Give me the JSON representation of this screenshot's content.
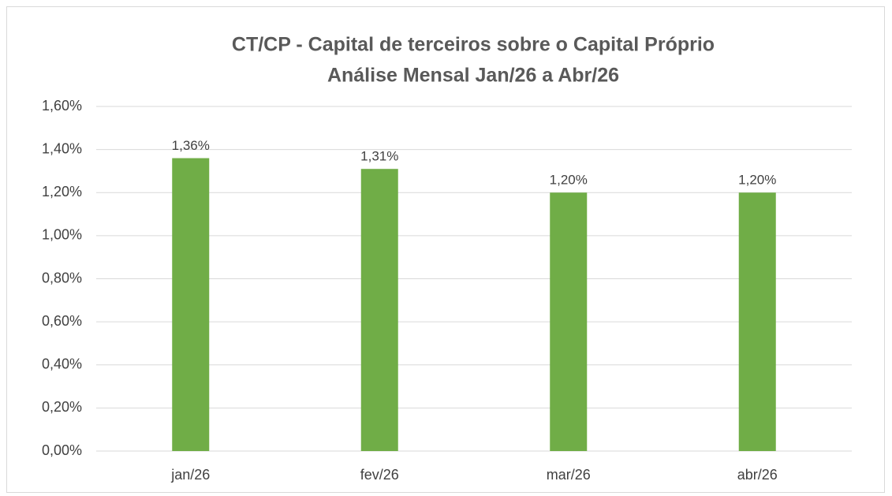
{
  "chart_data": {
    "type": "bar",
    "title": "CT/CP - Capital de terceiros sobre o Capital Próprio",
    "subtitle": "Análise Mensal Jan/26 a Abr/26",
    "categories": [
      "jan/26",
      "fev/26",
      "mar/26",
      "abr/26"
    ],
    "values": [
      1.36,
      1.31,
      1.2,
      1.2
    ],
    "value_labels": [
      "1,36%",
      "1,31%",
      "1,20%",
      "1,20%"
    ],
    "color": "#70ad47",
    "ylim": [
      0,
      1.6
    ],
    "yticks": [
      {
        "value": 0,
        "label": "0,00%"
      },
      {
        "value": 0.2,
        "label": "0,20%"
      },
      {
        "value": 0.4,
        "label": "0,40%"
      },
      {
        "value": 0.6,
        "label": "0,60%"
      },
      {
        "value": 0.8,
        "label": "0,80%"
      },
      {
        "value": 1.0,
        "label": "1,00%"
      },
      {
        "value": 1.2,
        "label": "1,20%"
      },
      {
        "value": 1.4,
        "label": "1,40%"
      },
      {
        "value": 1.6,
        "label": "1,60%"
      }
    ],
    "grid": true
  }
}
